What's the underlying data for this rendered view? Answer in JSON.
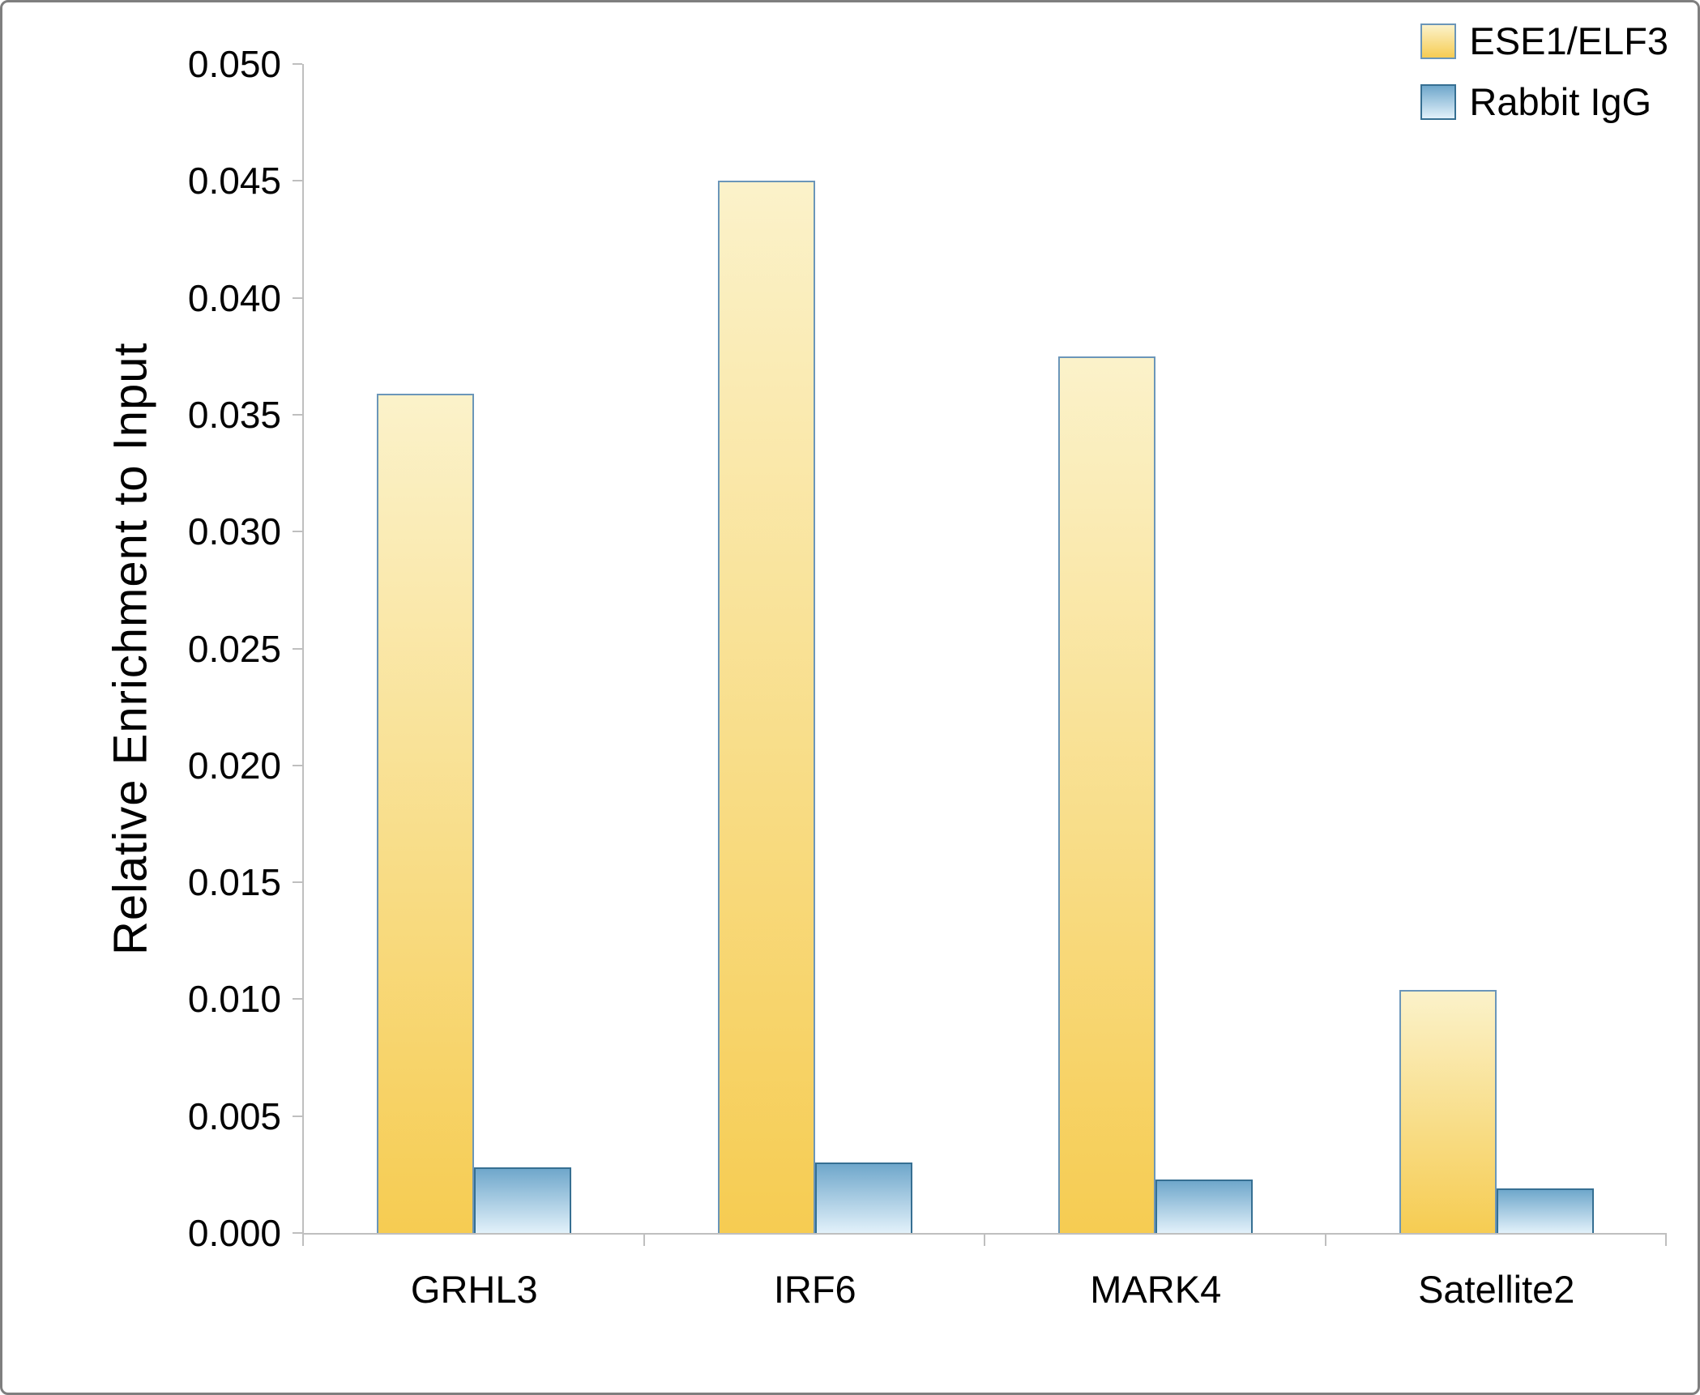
{
  "chart_data": {
    "type": "bar",
    "title": "",
    "xlabel": "",
    "ylabel": "Relative Enrichment to Input",
    "categories": [
      "GRHL3",
      "IRF6",
      "MARK4",
      "Satellite2"
    ],
    "series": [
      {
        "name": "ESE1/ELF3",
        "values": [
          0.0359,
          0.045,
          0.0375,
          0.0104
        ],
        "color_top": "#FBF2CA",
        "color_bottom": "#F6CC52",
        "border_color": "#6B96B9"
      },
      {
        "name": "Rabbit IgG",
        "values": [
          0.0028,
          0.003,
          0.0023,
          0.0019
        ],
        "color_top": "#6FA7CB",
        "color_bottom": "#E2F1FA",
        "border_color": "#366F92"
      }
    ],
    "ylim": [
      0,
      0.05
    ],
    "ytick_step": 0.005,
    "ytick_labels": [
      "0.000",
      "0.005",
      "0.010",
      "0.015",
      "0.020",
      "0.025",
      "0.030",
      "0.035",
      "0.040",
      "0.045",
      "0.050"
    ],
    "grid": false,
    "legend_position": "top-right",
    "axis_color": "#BFBFBF"
  }
}
